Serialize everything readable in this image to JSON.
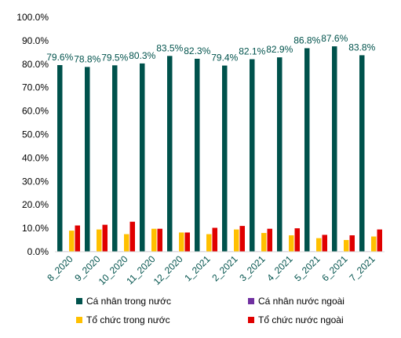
{
  "chart_data": {
    "type": "bar",
    "categories": [
      "8_2020",
      "9_2020",
      "10_2020",
      "11_2020",
      "12_2020",
      "1_2021",
      "2_2021",
      "3_2021",
      "4_2021",
      "5_2021",
      "6_2021",
      "7_2021"
    ],
    "ylim": [
      0,
      100
    ],
    "yticks": [
      "0.0%",
      "10.0%",
      "20.0%",
      "30.0%",
      "40.0%",
      "50.0%",
      "60.0%",
      "70.0%",
      "80.0%",
      "90.0%",
      "100.0%"
    ],
    "grid": false,
    "legend_position": "bottom",
    "series": [
      {
        "name": "Cá nhân trong nước",
        "color": "#00524C",
        "values": [
          79.6,
          78.8,
          79.5,
          80.3,
          83.5,
          82.3,
          79.4,
          82.1,
          82.9,
          86.8,
          87.6,
          83.8
        ],
        "data_labels": [
          "79.6%",
          "78.8%",
          "79.5%",
          "80.3%",
          "83.5%",
          "82.3%",
          "79.4%",
          "82.1%",
          "82.9%",
          "86.8%",
          "87.6%",
          "83.8%"
        ]
      },
      {
        "name": "Cá nhân nước ngoài",
        "color": "#7030A0",
        "values": [
          0.2,
          0.2,
          0.2,
          0.2,
          0.2,
          0.2,
          0.2,
          0.2,
          0.2,
          0.2,
          0.2,
          0.2
        ]
      },
      {
        "name": "Tổ chức trong nước",
        "color": "#FFC000",
        "values": [
          9.0,
          9.5,
          7.5,
          9.8,
          8.2,
          7.5,
          9.5,
          8.0,
          7.0,
          5.8,
          5.0,
          6.5
        ]
      },
      {
        "name": "Tổ chức nước ngoài",
        "color": "#E00000",
        "values": [
          11.2,
          11.5,
          12.8,
          9.8,
          8.2,
          10.2,
          11.0,
          9.8,
          10.0,
          7.2,
          7.0,
          9.5
        ]
      }
    ]
  }
}
